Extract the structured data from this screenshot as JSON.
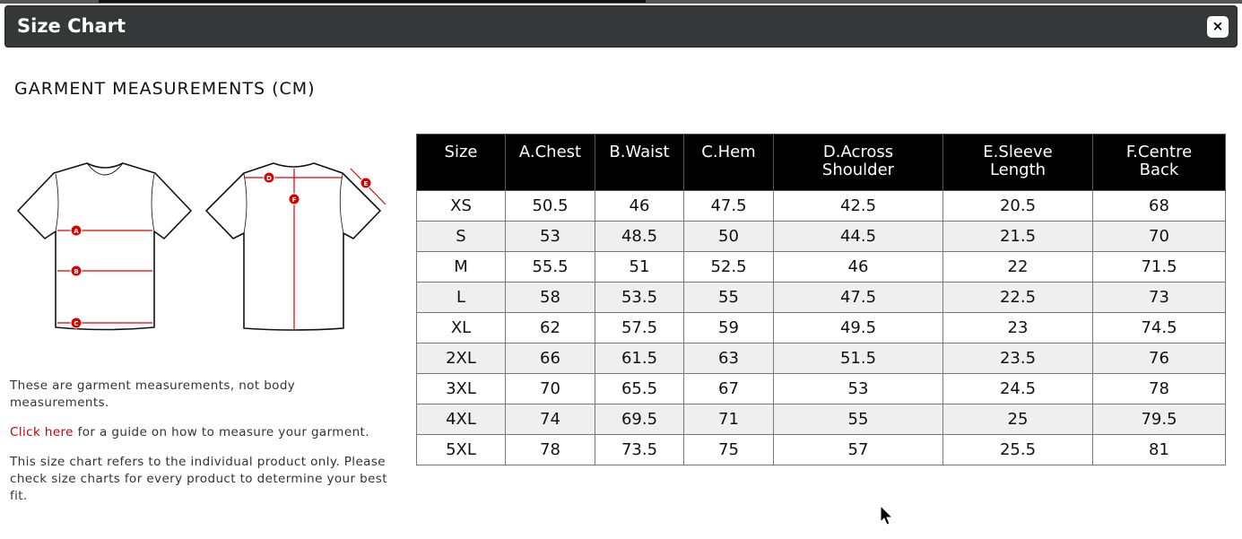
{
  "modal": {
    "title": "Size Chart",
    "close_label": "×"
  },
  "heading": "GARMENT MEASUREMENTS (CM)",
  "diagram_labels": [
    "A",
    "B",
    "C",
    "D",
    "E",
    "F"
  ],
  "notes": {
    "note1": "These are garment measurements, not body measurements.",
    "link_text": "Click here",
    "link_rest": " for a guide on how to measure your garment.",
    "note3": "This size chart refers to the individual product only. Please check size charts for every product to determine your best fit."
  },
  "colors": {
    "header_bg": "#363738",
    "accent": "#c00000",
    "table_header": "#000000"
  },
  "table": {
    "headers": [
      [
        "Size",
        ""
      ],
      [
        "A.Chest",
        ""
      ],
      [
        "B.Waist",
        ""
      ],
      [
        "C.Hem",
        ""
      ],
      [
        "D.Across",
        "Shoulder"
      ],
      [
        "E.Sleeve",
        "Length"
      ],
      [
        "F.Centre",
        "Back"
      ]
    ],
    "rows": [
      [
        "XS",
        "50.5",
        "46",
        "47.5",
        "42.5",
        "20.5",
        "68"
      ],
      [
        "S",
        "53",
        "48.5",
        "50",
        "44.5",
        "21.5",
        "70"
      ],
      [
        "M",
        "55.5",
        "51",
        "52.5",
        "46",
        "22",
        "71.5"
      ],
      [
        "L",
        "58",
        "53.5",
        "55",
        "47.5",
        "22.5",
        "73"
      ],
      [
        "XL",
        "62",
        "57.5",
        "59",
        "49.5",
        "23",
        "74.5"
      ],
      [
        "2XL",
        "66",
        "61.5",
        "63",
        "51.5",
        "23.5",
        "76"
      ],
      [
        "3XL",
        "70",
        "65.5",
        "67",
        "53",
        "24.5",
        "78"
      ],
      [
        "4XL",
        "74",
        "69.5",
        "71",
        "55",
        "25",
        "79.5"
      ],
      [
        "5XL",
        "78",
        "73.5",
        "75",
        "57",
        "25.5",
        "81"
      ]
    ]
  }
}
